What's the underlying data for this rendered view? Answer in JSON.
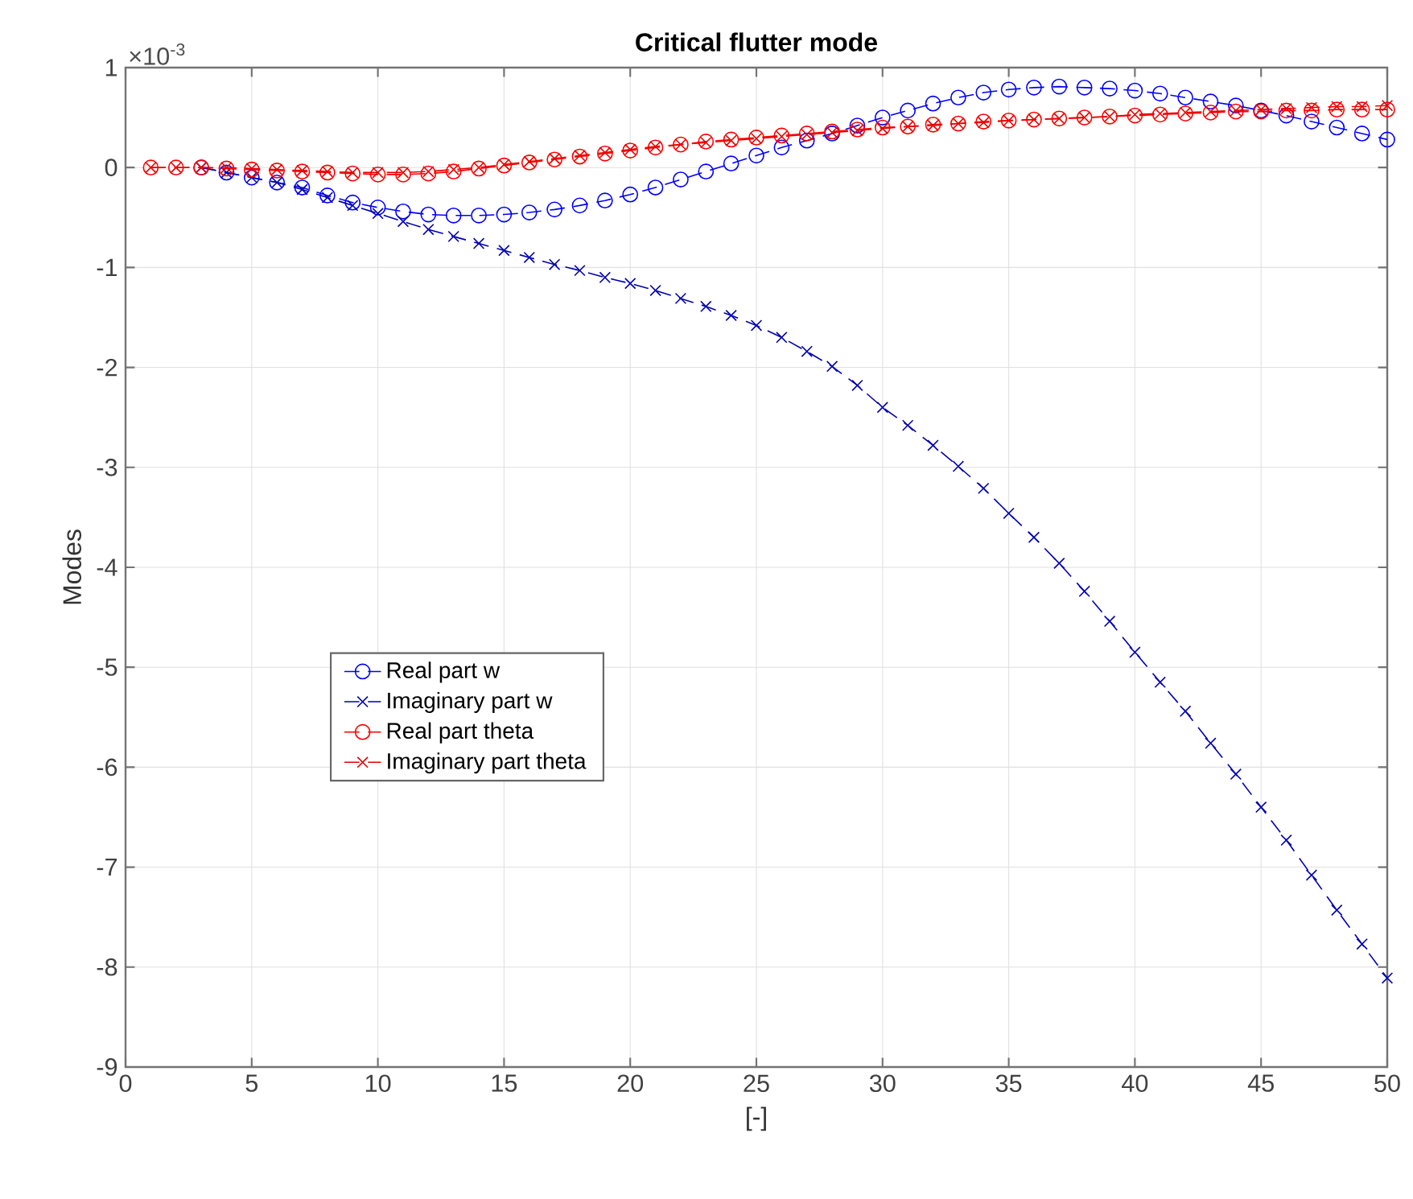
{
  "chart_data": {
    "type": "line",
    "title": "Critical flutter mode",
    "xlabel": "[-]",
    "ylabel": "Modes",
    "annotations": [
      "×10$^{-3}$"
    ],
    "xlim": [
      0,
      50
    ],
    "xticks": [
      0,
      5,
      10,
      15,
      20,
      25,
      30,
      35,
      40,
      45,
      50
    ],
    "ylim": [
      -9,
      1
    ],
    "yticks": [
      -9,
      -8,
      -7,
      -6,
      -5,
      -4,
      -3,
      -2,
      -1,
      0,
      1
    ],
    "grid": true,
    "legend": "left",
    "line_style": "dashed",
    "series": [
      {
        "name": "Real part w",
        "color": "#0000ff",
        "marker": "circle",
        "x": [
          3,
          4,
          5,
          6,
          7,
          8,
          9,
          10,
          11,
          12,
          13,
          14,
          15,
          16,
          17,
          18,
          19,
          20,
          21,
          22,
          23,
          24,
          25,
          26,
          27,
          28,
          29,
          30,
          31,
          32,
          33,
          34,
          35,
          36,
          37,
          38,
          39,
          40,
          41,
          42,
          43,
          44,
          45,
          46,
          47,
          48,
          49,
          50
        ],
        "values": [
          0.0,
          -0.05,
          -0.1,
          -0.15,
          -0.2,
          -0.28,
          -0.35,
          -0.4,
          -0.44,
          -0.47,
          -0.48,
          -0.48,
          -0.47,
          -0.45,
          -0.42,
          -0.38,
          -0.33,
          -0.27,
          -0.2,
          -0.12,
          -0.04,
          0.04,
          0.12,
          0.2,
          0.27,
          0.34,
          0.42,
          0.5,
          0.57,
          0.64,
          0.7,
          0.75,
          0.78,
          0.8,
          0.81,
          0.8,
          0.79,
          0.77,
          0.74,
          0.7,
          0.66,
          0.62,
          0.57,
          0.52,
          0.46,
          0.4,
          0.34,
          0.28
        ]
      },
      {
        "name": "Imaginary part w",
        "color": "#0000b0",
        "marker": "cross",
        "x": [
          3,
          4,
          5,
          6,
          7,
          8,
          9,
          10,
          11,
          12,
          13,
          14,
          15,
          16,
          17,
          18,
          19,
          20,
          21,
          22,
          23,
          24,
          25,
          26,
          27,
          28,
          29,
          30,
          31,
          32,
          33,
          34,
          35,
          36,
          37,
          38,
          39,
          40,
          41,
          42,
          43,
          44,
          45,
          46,
          47,
          48,
          49,
          50
        ],
        "values": [
          0.0,
          -0.05,
          -0.1,
          -0.15,
          -0.22,
          -0.3,
          -0.38,
          -0.46,
          -0.54,
          -0.62,
          -0.69,
          -0.76,
          -0.83,
          -0.9,
          -0.97,
          -1.03,
          -1.1,
          -1.16,
          -1.23,
          -1.31,
          -1.39,
          -1.48,
          -1.58,
          -1.7,
          -1.84,
          -1.99,
          -2.18,
          -2.4,
          -2.58,
          -2.78,
          -2.99,
          -3.21,
          -3.46,
          -3.7,
          -3.96,
          -4.24,
          -4.54,
          -4.85,
          -5.15,
          -5.44,
          -5.76,
          -6.07,
          -6.4,
          -6.73,
          -7.08,
          -7.43,
          -7.77,
          -8.11
        ]
      },
      {
        "name": "Real part theta",
        "color": "#ff0000",
        "marker": "circle",
        "x": [
          1,
          2,
          3,
          4,
          5,
          6,
          7,
          8,
          9,
          10,
          11,
          12,
          13,
          14,
          15,
          16,
          17,
          18,
          19,
          20,
          21,
          22,
          23,
          24,
          25,
          26,
          27,
          28,
          29,
          30,
          31,
          32,
          33,
          34,
          35,
          36,
          37,
          38,
          39,
          40,
          41,
          42,
          43,
          44,
          45,
          46,
          47,
          48,
          49,
          50
        ],
        "values": [
          0.0,
          0.0,
          0.0,
          -0.01,
          -0.02,
          -0.03,
          -0.04,
          -0.05,
          -0.06,
          -0.07,
          -0.07,
          -0.06,
          -0.04,
          -0.01,
          0.02,
          0.05,
          0.08,
          0.11,
          0.14,
          0.17,
          0.2,
          0.23,
          0.26,
          0.28,
          0.3,
          0.32,
          0.34,
          0.36,
          0.38,
          0.4,
          0.41,
          0.43,
          0.44,
          0.46,
          0.47,
          0.48,
          0.49,
          0.5,
          0.51,
          0.52,
          0.53,
          0.54,
          0.55,
          0.56,
          0.56,
          0.57,
          0.57,
          0.58,
          0.58,
          0.58
        ]
      },
      {
        "name": "Imaginary part theta",
        "color": "#e80000",
        "marker": "cross",
        "x": [
          1,
          2,
          3,
          4,
          5,
          6,
          7,
          8,
          9,
          10,
          11,
          12,
          13,
          14,
          15,
          16,
          17,
          18,
          19,
          20,
          21,
          22,
          23,
          24,
          25,
          26,
          27,
          28,
          29,
          30,
          31,
          32,
          33,
          34,
          35,
          36,
          37,
          38,
          39,
          40,
          41,
          42,
          43,
          44,
          45,
          46,
          47,
          48,
          49,
          50
        ],
        "values": [
          0.0,
          0.0,
          0.0,
          0.0,
          -0.01,
          -0.02,
          -0.03,
          -0.04,
          -0.05,
          -0.05,
          -0.05,
          -0.04,
          -0.02,
          0.0,
          0.03,
          0.06,
          0.09,
          0.12,
          0.15,
          0.18,
          0.21,
          0.23,
          0.25,
          0.27,
          0.29,
          0.31,
          0.33,
          0.35,
          0.37,
          0.39,
          0.41,
          0.42,
          0.44,
          0.45,
          0.47,
          0.48,
          0.49,
          0.5,
          0.51,
          0.53,
          0.54,
          0.55,
          0.56,
          0.57,
          0.58,
          0.59,
          0.6,
          0.61,
          0.61,
          0.62
        ]
      }
    ]
  }
}
